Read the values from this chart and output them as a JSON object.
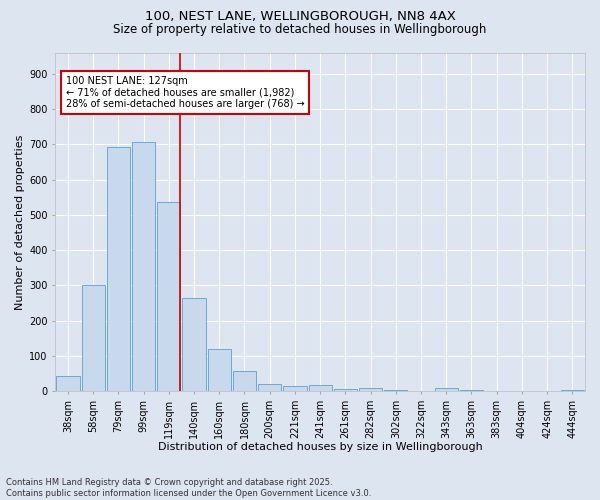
{
  "title_line1": "100, NEST LANE, WELLINGBOROUGH, NN8 4AX",
  "title_line2": "Size of property relative to detached houses in Wellingborough",
  "xlabel": "Distribution of detached houses by size in Wellingborough",
  "ylabel": "Number of detached properties",
  "categories": [
    "38sqm",
    "58sqm",
    "79sqm",
    "99sqm",
    "119sqm",
    "140sqm",
    "160sqm",
    "180sqm",
    "200sqm",
    "221sqm",
    "241sqm",
    "261sqm",
    "282sqm",
    "302sqm",
    "322sqm",
    "343sqm",
    "363sqm",
    "383sqm",
    "404sqm",
    "424sqm",
    "444sqm"
  ],
  "values": [
    42,
    300,
    693,
    706,
    537,
    264,
    120,
    57,
    22,
    14,
    17,
    7,
    9,
    3,
    0,
    8,
    3,
    2,
    1,
    0,
    4
  ],
  "bar_color": "#c8d9ee",
  "bar_edge_color": "#6aaad4",
  "vline_x": 4.43,
  "vline_color": "#cc0000",
  "annotation_text": "100 NEST LANE: 127sqm\n← 71% of detached houses are smaller (1,982)\n28% of semi-detached houses are larger (768) →",
  "annotation_box_color": "#ffffff",
  "annotation_box_edge": "#cc0000",
  "ylim": [
    0,
    960
  ],
  "yticks": [
    0,
    100,
    200,
    300,
    400,
    500,
    600,
    700,
    800,
    900
  ],
  "background_color": "#dde5f0",
  "plot_background": "#dde5f0",
  "grid_color": "#ffffff",
  "footnote": "Contains HM Land Registry data © Crown copyright and database right 2025.\nContains public sector information licensed under the Open Government Licence v3.0.",
  "title_fontsize": 9.5,
  "subtitle_fontsize": 8.5,
  "xlabel_fontsize": 8,
  "ylabel_fontsize": 8,
  "tick_fontsize": 7,
  "footnote_fontsize": 6,
  "ann_fontsize": 7
}
